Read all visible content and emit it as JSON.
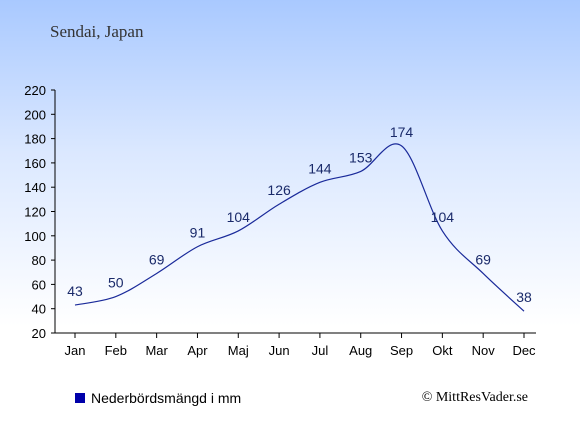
{
  "caption": "Sendai, Japan",
  "legend_label": "Nederbördsmängd i mm",
  "credit": "© MittResVader.se",
  "colors": {
    "line": "#1a2a9a",
    "label": "#1a2a6a",
    "swatch": "#0000aa"
  },
  "chart_data": {
    "type": "line",
    "categories": [
      "Jan",
      "Feb",
      "Mar",
      "Apr",
      "Maj",
      "Jun",
      "Jul",
      "Aug",
      "Sep",
      "Okt",
      "Nov",
      "Dec"
    ],
    "values": [
      43,
      50,
      69,
      91,
      104,
      126,
      144,
      153,
      174,
      104,
      69,
      38
    ],
    "ylim": [
      20,
      220
    ],
    "yticks": [
      20,
      40,
      60,
      80,
      100,
      120,
      140,
      160,
      180,
      200,
      220
    ],
    "grid": false
  }
}
